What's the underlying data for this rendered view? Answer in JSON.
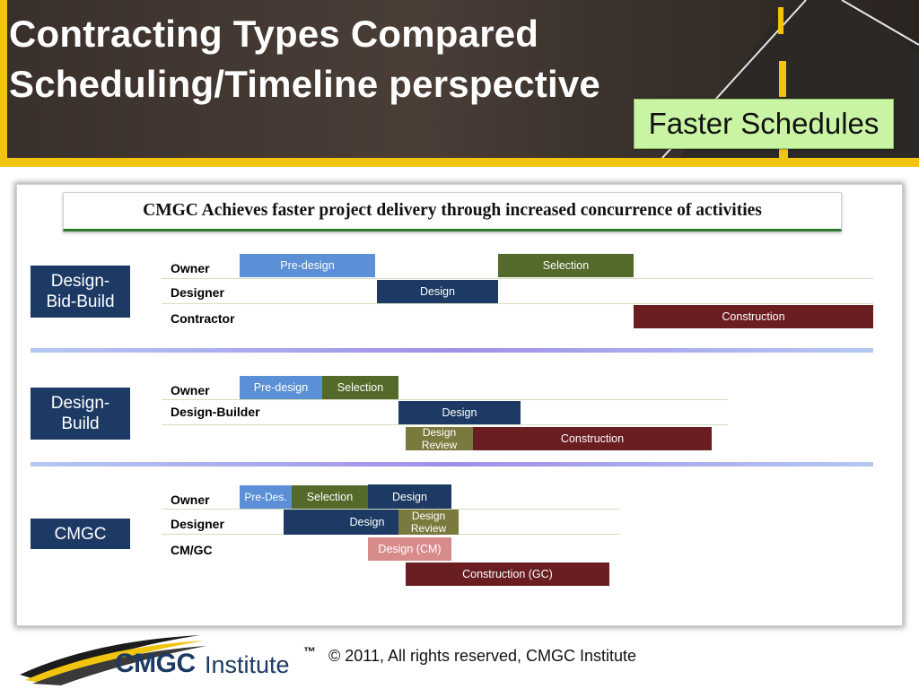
{
  "header": {
    "title_line1": "Contracting Types Compared",
    "title_line2": "Scheduling/Timeline perspective",
    "callout": "Faster Schedules"
  },
  "banner": "CMGC Achieves faster project delivery through increased concurrence of activities",
  "sections": {
    "dbb": {
      "label": "Design-Bid-Build",
      "roles": [
        "Owner",
        "Designer",
        "Contractor"
      ],
      "bars": {
        "predesign": "Pre-design",
        "selection": "Selection",
        "design": "Design",
        "construction": "Construction"
      }
    },
    "db": {
      "label": "Design-Build",
      "roles": [
        "Owner",
        "Design-Builder"
      ],
      "bars": {
        "predesign": "Pre-design",
        "selection": "Selection",
        "design": "Design",
        "review": "Design Review",
        "construction": "Construction"
      }
    },
    "cmgc": {
      "label": "CMGC",
      "roles": [
        "Owner",
        "Designer",
        "CM/GC"
      ],
      "bars": {
        "predesign": "Pre-Des.",
        "selection": "Selection",
        "design_owner": "Design",
        "design_designer": "Design",
        "review": "Design Review",
        "design_cm": "Design (CM)",
        "construction": "Construction (GC)"
      }
    }
  },
  "footer": {
    "tm": "™",
    "copyright": "© 2011, All rights reserved, CMGC Institute",
    "logo_cmgc": "CMGC",
    "logo_institute": "Institute"
  },
  "colors": {
    "header_border": "#f1c40f",
    "callout_bg": "#c9f4a4",
    "type_box": "#1c3a64",
    "predesign": "#5b8fd6",
    "selection": "#536a2a",
    "design": "#1c3a64",
    "construction": "#6b1e22",
    "review": "#7b7a3e",
    "design_cm": "#d78b8b"
  }
}
